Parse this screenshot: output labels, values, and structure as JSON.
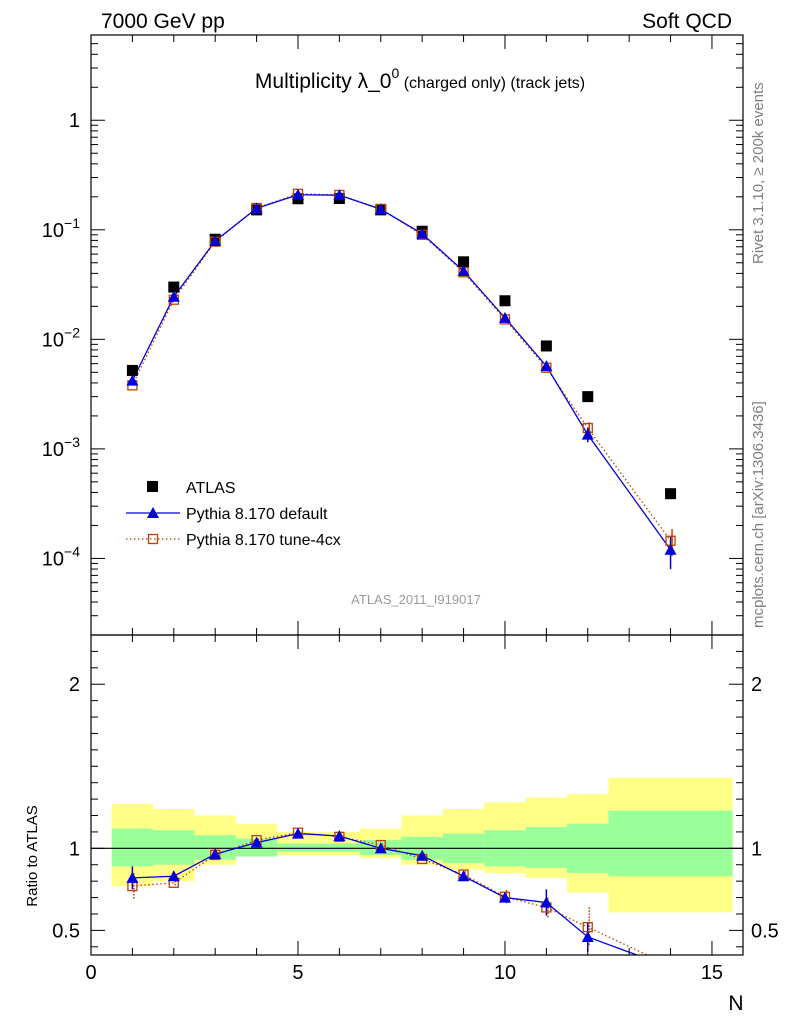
{
  "header": {
    "left": "7000 GeV pp",
    "right": "Soft QCD"
  },
  "side_labels": {
    "rivet": "Rivet 3.1.10, ≥ 200k events",
    "mcplots": "mcplots.cern.ch [arXiv:1306.3436]"
  },
  "analysis_id": "ATLAS_2011_I919017",
  "chart_data": [
    {
      "type": "scatter",
      "panel": "main",
      "title_main": "Multiplicity λ_0",
      "title_sup": "0",
      "title_rest": " (charged only) (track jets)",
      "xlabel": "N",
      "ylabel": "",
      "yscale": "log",
      "xlim": [
        0,
        15.75
      ],
      "ylim": [
        2e-05,
        6
      ],
      "y_ticks": [
        {
          "value": 1,
          "base": "1",
          "exp": ""
        },
        {
          "value": 0.1,
          "base": "10",
          "exp": "−1"
        },
        {
          "value": 0.01,
          "base": "10",
          "exp": "−2"
        },
        {
          "value": 0.001,
          "base": "10",
          "exp": "−3"
        },
        {
          "value": 0.0001,
          "base": "10",
          "exp": "−4"
        }
      ],
      "series": [
        {
          "name": "ATLAS",
          "style": "data",
          "color": "#000000",
          "x": [
            1,
            2,
            3,
            4,
            5,
            6,
            7,
            8,
            9,
            10,
            11,
            12,
            14
          ],
          "y": [
            0.0052,
            0.03,
            0.082,
            0.152,
            0.192,
            0.193,
            0.152,
            0.097,
            0.051,
            0.0225,
            0.0087,
            0.003,
            0.00039
          ]
        },
        {
          "name": "Pythia 8.170 default",
          "style": "solid-triangle",
          "color": "#0000dd",
          "x": [
            1,
            2,
            3,
            4,
            5,
            6,
            7,
            8,
            9,
            10,
            11,
            12,
            14
          ],
          "y": [
            0.0042,
            0.0245,
            0.079,
            0.157,
            0.209,
            0.207,
            0.154,
            0.092,
            0.042,
            0.0157,
            0.0057,
            0.00135,
            0.00012
          ],
          "err": [
            0,
            0,
            0,
            0,
            0,
            0,
            0,
            0,
            0,
            0,
            0,
            0.0002,
            4e-05
          ]
        },
        {
          "name": "Pythia 8.170 tune-4cx",
          "style": "dotted-square",
          "color": "#c04000",
          "x": [
            1,
            2,
            3,
            4,
            5,
            6,
            7,
            8,
            9,
            10,
            11,
            12,
            14
          ],
          "y": [
            0.0038,
            0.023,
            0.078,
            0.158,
            0.213,
            0.208,
            0.155,
            0.09,
            0.041,
            0.0152,
            0.0055,
            0.00155,
            0.000145
          ],
          "err": [
            0,
            0,
            0,
            0,
            0,
            0,
            0,
            0,
            0,
            0,
            0,
            0.0002,
            4e-05
          ]
        }
      ],
      "legend": "lower-left"
    },
    {
      "type": "line",
      "panel": "ratio",
      "ylabel": "Ratio to ATLAS",
      "xlabel": "N",
      "xlim": [
        0,
        15.75
      ],
      "ylim": [
        0.35,
        2.3
      ],
      "y_ticks": [
        {
          "value": 0.5,
          "label": "0.5"
        },
        {
          "value": 1,
          "label": "1"
        },
        {
          "value": 2,
          "label": "2"
        }
      ],
      "x_ticks": [
        {
          "value": 0,
          "label": "0"
        },
        {
          "value": 5,
          "label": "5"
        },
        {
          "value": 10,
          "label": "10"
        },
        {
          "value": 15,
          "label": "15"
        }
      ],
      "bands": {
        "bins": [
          [
            0.5,
            1.5
          ],
          [
            1.5,
            2.5
          ],
          [
            2.5,
            3.5
          ],
          [
            3.5,
            4.5
          ],
          [
            4.5,
            5.5
          ],
          [
            5.5,
            6.5
          ],
          [
            6.5,
            7.5
          ],
          [
            7.5,
            8.5
          ],
          [
            8.5,
            9.5
          ],
          [
            9.5,
            10.5
          ],
          [
            10.5,
            11.5
          ],
          [
            11.5,
            12.5
          ],
          [
            12.5,
            15.5
          ]
        ],
        "stat": [
          [
            0.89,
            1.12
          ],
          [
            0.9,
            1.11
          ],
          [
            0.93,
            1.08
          ],
          [
            0.95,
            1.06
          ],
          [
            0.98,
            1.03
          ],
          [
            0.98,
            1.03
          ],
          [
            0.96,
            1.05
          ],
          [
            0.93,
            1.07
          ],
          [
            0.91,
            1.09
          ],
          [
            0.89,
            1.11
          ],
          [
            0.88,
            1.13
          ],
          [
            0.85,
            1.15
          ],
          [
            0.83,
            1.23
          ]
        ],
        "total": [
          [
            0.77,
            1.27
          ],
          [
            0.8,
            1.24
          ],
          [
            0.9,
            1.2
          ],
          [
            0.95,
            1.15
          ],
          [
            0.96,
            1.1
          ],
          [
            0.96,
            1.1
          ],
          [
            0.94,
            1.12
          ],
          [
            0.9,
            1.2
          ],
          [
            0.87,
            1.24
          ],
          [
            0.85,
            1.28
          ],
          [
            0.82,
            1.31
          ],
          [
            0.73,
            1.33
          ],
          [
            0.61,
            1.43
          ]
        ],
        "stat_color": "#99ff99",
        "total_color": "#ffff88"
      },
      "series": [
        {
          "name": "Pythia 8.170 default",
          "style": "solid-triangle",
          "color": "#0000dd",
          "x": [
            1,
            2,
            3,
            4,
            5,
            6,
            7,
            8,
            9,
            10,
            11,
            12,
            13.4
          ],
          "y": [
            0.82,
            0.83,
            0.965,
            1.035,
            1.09,
            1.075,
            1.0,
            0.955,
            0.83,
            0.7,
            0.67,
            0.46,
            0.33
          ],
          "err": [
            0.07,
            0.03,
            0.01,
            0.01,
            0.01,
            0.01,
            0.01,
            0.01,
            0.02,
            0.03,
            0.08,
            0.09,
            0
          ]
        },
        {
          "name": "Pythia 8.170 tune-4cx",
          "style": "dotted-square",
          "color": "#c04000",
          "x": [
            1,
            2,
            3,
            4,
            5,
            6,
            7,
            8,
            9,
            10,
            11,
            12,
            13.6
          ],
          "y": [
            0.77,
            0.79,
            0.96,
            1.05,
            1.095,
            1.07,
            1.02,
            0.935,
            0.84,
            0.705,
            0.64,
            0.52,
            0.33
          ],
          "err": [
            0.08,
            0.03,
            0.01,
            0.01,
            0.01,
            0.01,
            0.01,
            0.01,
            0.02,
            0.04,
            0.06,
            0.12,
            0
          ]
        }
      ]
    }
  ]
}
